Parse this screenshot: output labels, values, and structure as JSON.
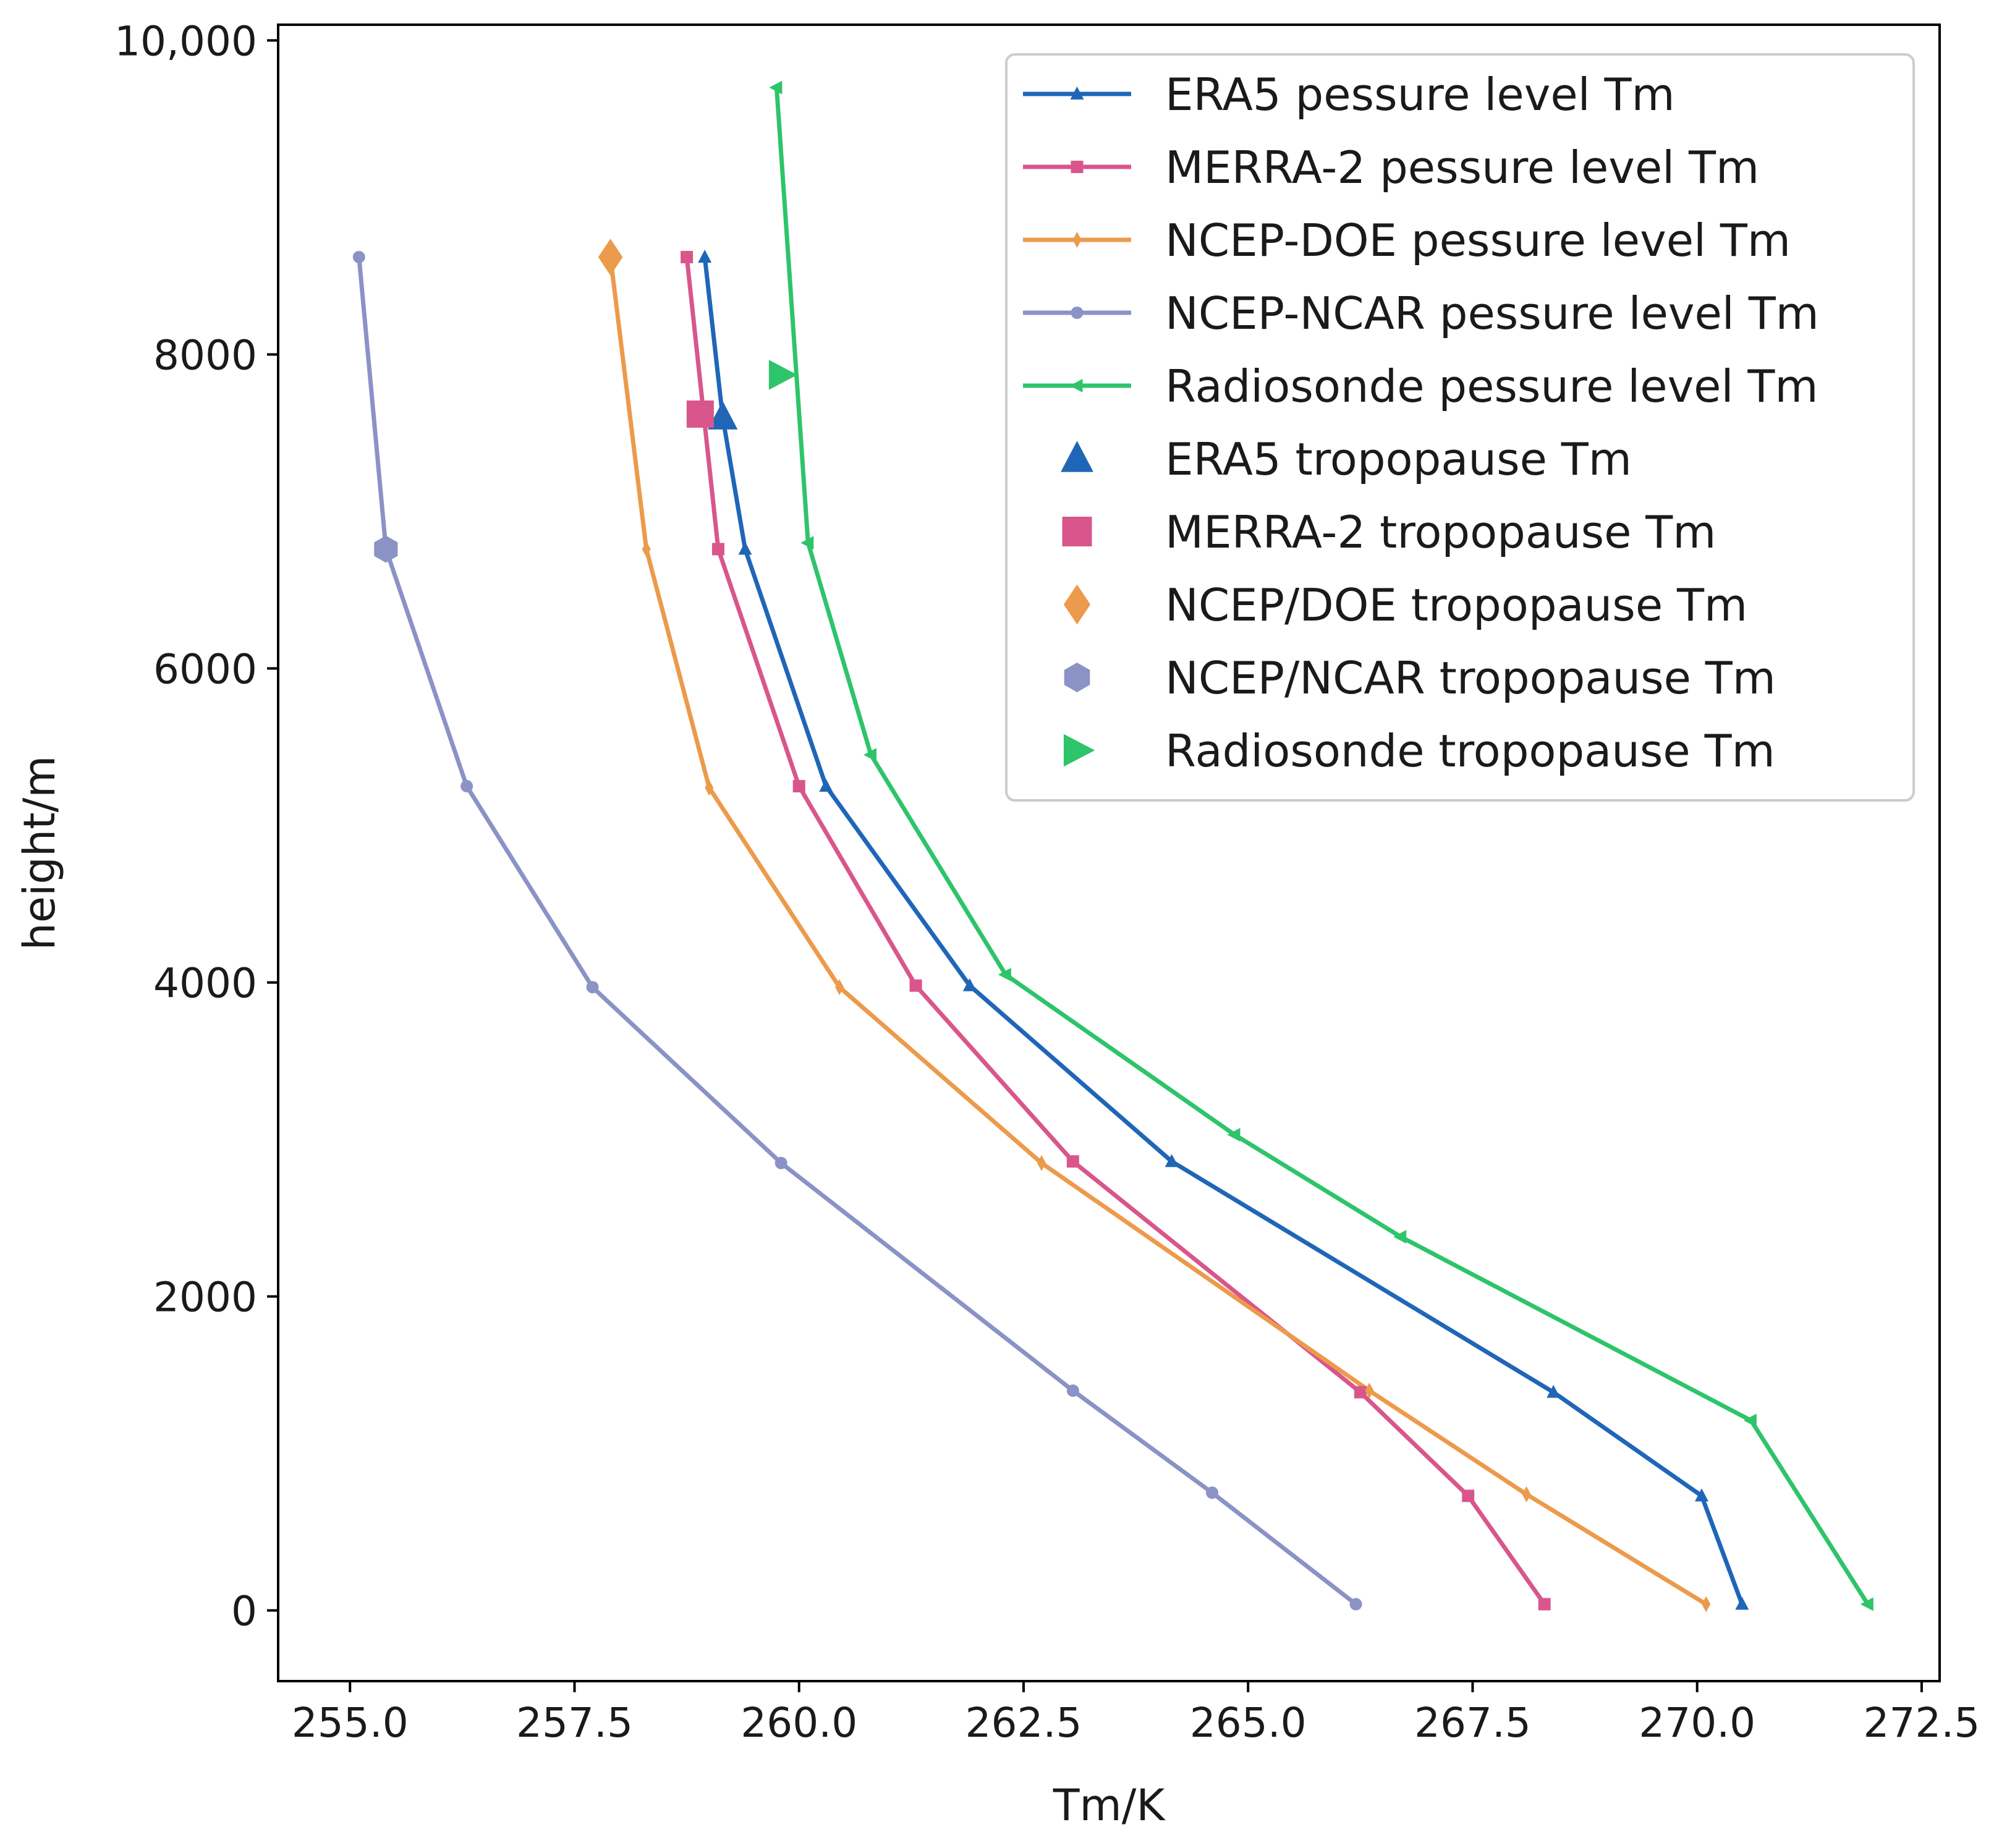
{
  "chart_data": {
    "type": "line",
    "title": "",
    "xlabel": "Tm/K",
    "ylabel": "height/m",
    "xlim": [
      254.2,
      272.7
    ],
    "ylim": [
      -450,
      10100
    ],
    "xticks": [
      255.0,
      257.5,
      260.0,
      262.5,
      265.0,
      267.5,
      270.0,
      272.5
    ],
    "xtick_labels": [
      "255.0",
      "257.5",
      "260.0",
      "262.5",
      "265.0",
      "267.5",
      "270.0",
      "272.5"
    ],
    "yticks": [
      0,
      2000,
      4000,
      6000,
      8000,
      10000
    ],
    "ytick_labels": [
      "0",
      "2000",
      "4000",
      "6000",
      "8000",
      "10,000"
    ],
    "grid": false,
    "legend_position": "top-right",
    "series": [
      {
        "name": "ERA5 pessure level Tm",
        "color": "#1f66b8",
        "marker": "triangle-up",
        "points": [
          [
            270.5,
            40
          ],
          [
            270.05,
            730
          ],
          [
            268.4,
            1390
          ],
          [
            264.15,
            2860
          ],
          [
            261.9,
            3980
          ],
          [
            260.3,
            5250
          ],
          [
            259.4,
            6760
          ],
          [
            259.15,
            7600
          ],
          [
            258.95,
            8620
          ]
        ]
      },
      {
        "name": "MERRA-2 pessure level Tm",
        "color": "#d9568c",
        "marker": "square",
        "points": [
          [
            268.3,
            40
          ],
          [
            267.45,
            730
          ],
          [
            266.25,
            1390
          ],
          [
            263.05,
            2860
          ],
          [
            261.3,
            3980
          ],
          [
            260.0,
            5250
          ],
          [
            259.1,
            6760
          ],
          [
            258.75,
            8620
          ]
        ]
      },
      {
        "name": "NCEP-DOE pessure level Tm",
        "color": "#ec9a4b",
        "marker": "thin-diamond",
        "points": [
          [
            270.1,
            40
          ],
          [
            268.1,
            740
          ],
          [
            266.35,
            1400
          ],
          [
            262.7,
            2850
          ],
          [
            260.45,
            3970
          ],
          [
            259.0,
            5240
          ],
          [
            258.3,
            6760
          ],
          [
            257.9,
            8620
          ]
        ]
      },
      {
        "name": "NCEP-NCAR pessure level Tm",
        "color": "#8b92c6",
        "marker": "circle",
        "points": [
          [
            266.2,
            40
          ],
          [
            264.6,
            750
          ],
          [
            263.05,
            1400
          ],
          [
            259.8,
            2850
          ],
          [
            257.7,
            3970
          ],
          [
            256.3,
            5250
          ],
          [
            255.4,
            6760
          ],
          [
            255.1,
            8620
          ]
        ]
      },
      {
        "name": "Radiosonde pessure level Tm",
        "color": "#2ec46a",
        "marker": "triangle-left",
        "points": [
          [
            271.9,
            40
          ],
          [
            270.6,
            1210
          ],
          [
            266.7,
            2380
          ],
          [
            264.85,
            3030
          ],
          [
            262.3,
            4050
          ],
          [
            260.8,
            5450
          ],
          [
            260.1,
            6800
          ],
          [
            259.75,
            9700
          ]
        ]
      }
    ],
    "tropopause_points": [
      {
        "name": "ERA5  tropopause Tm",
        "color": "#1f66b8",
        "marker": "triangle-up",
        "x": 259.15,
        "y": 7600
      },
      {
        "name": "MERRA-2 tropopause Tm",
        "color": "#d9568c",
        "marker": "square",
        "x": 258.9,
        "y": 7620
      },
      {
        "name": "NCEP/DOE  tropopause Tm",
        "color": "#ec9a4b",
        "marker": "diamond",
        "x": 257.9,
        "y": 8620
      },
      {
        "name": "NCEP/NCAR  tropopause Tm",
        "color": "#8b92c6",
        "marker": "hexagon",
        "x": 255.4,
        "y": 6760
      },
      {
        "name": "Radiosonde  tropopause Tm",
        "color": "#2ec46a",
        "marker": "triangle-right",
        "x": 259.8,
        "y": 7870
      }
    ]
  }
}
